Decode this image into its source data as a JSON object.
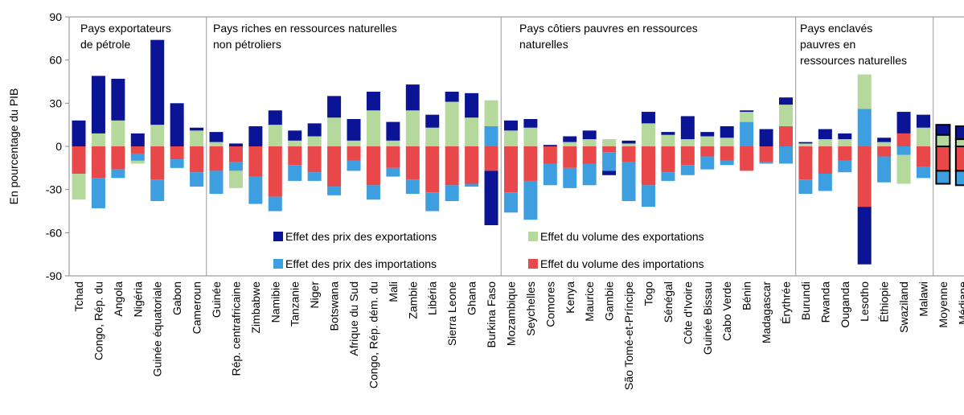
{
  "chart_data": {
    "type": "bar",
    "stacked": true,
    "y_label": "En pourcentage du PIB",
    "ylim": [
      -90,
      90
    ],
    "yticks": [
      90,
      60,
      30,
      0,
      -30,
      -60,
      -90
    ],
    "groups": [
      [
        "Pays exportateurs",
        "de pétrole"
      ],
      [
        "Pays riches en ressources naturelles",
        " non pétroliers"
      ],
      [
        "Pays côtiers pauvres en ressources",
        "naturelles"
      ],
      [
        "Pays enclavés",
        "pauvres en",
        "ressources naturelles"
      ]
    ],
    "categories": [
      "Tchad",
      "Congo, Rép. du",
      "Angola",
      "Nigéria",
      "Guinée équatoriale",
      "Gabon",
      "Cameroun",
      "Guinée",
      "Rép. centrafricaine",
      "Zimbabwe",
      "Namibie",
      "Tanzanie",
      "Niger",
      "Botswana",
      "Afrique du Sud",
      "Congo, Rép. dém. du",
      "Mali",
      "Zambie",
      "Libéria",
      "Sierra Leone",
      "Ghana",
      "Burkina Faso",
      "Mozambique",
      "Seychelles",
      "Comores",
      "Kenya",
      "Maurice",
      "Gambie",
      "São Tomé-et-Príncipe",
      "Togo",
      "Sénégal",
      "Côte d'Ivoire",
      "Guinée Bissau",
      "Cabo Verde",
      "Bénin",
      "Madagascar",
      "Érythrée",
      "Burundi",
      "Rwanda",
      "Ouganda",
      "Lesotho",
      "Éthiopie",
      "Swaziland",
      "Malawi",
      "Moyenne",
      "Médiane"
    ],
    "series": [
      {
        "name": "Effet du volume des importations",
        "color": "#e8484a",
        "values": [
          -19,
          -22,
          -16,
          -5,
          -23,
          -9,
          -18,
          -17,
          -11,
          -21,
          -35,
          -13,
          -18,
          -28,
          -10,
          -27,
          -15,
          -23,
          -32,
          -27,
          -26,
          -17,
          -32,
          -24,
          -12,
          -15,
          -12,
          -4,
          -11,
          -27,
          -18,
          -13,
          -7,
          -10,
          -17,
          -11,
          14,
          -23,
          -19,
          -10,
          -42,
          -7,
          9,
          -14,
          -17,
          -17
        ]
      },
      {
        "name": "Effet des prix des importations",
        "color": "#3d9ee0",
        "values": [
          0,
          -21,
          -6,
          -5,
          -15,
          -6,
          -10,
          -16,
          -6,
          -19,
          -10,
          -11,
          -6,
          -6,
          -7,
          -10,
          -6,
          -10,
          -13,
          -11,
          -2,
          14,
          -14,
          -27,
          -15,
          -14,
          -15,
          -13,
          -27,
          -15,
          -6,
          -7,
          -9,
          -3,
          17,
          -1,
          -12,
          -10,
          -12,
          -8,
          26,
          -18,
          -6,
          -8,
          -9,
          -10
        ]
      },
      {
        "name": "Effet du volume des exportations",
        "color": "#b5d99c",
        "values": [
          -18,
          9,
          18,
          -2,
          15,
          0,
          11,
          3,
          -12,
          0,
          15,
          4,
          7,
          20,
          4,
          25,
          4,
          25,
          13,
          31,
          20,
          18,
          11,
          13,
          0,
          3,
          5,
          5,
          2,
          16,
          8,
          5,
          7,
          6,
          7,
          0,
          15,
          2,
          5,
          5,
          24,
          3,
          -20,
          13,
          8,
          5
        ]
      },
      {
        "name": "Effet des prix des exportations",
        "color": "#0a1495",
        "values": [
          18,
          40,
          29,
          9,
          59,
          30,
          2,
          7,
          2,
          14,
          10,
          7,
          9,
          15,
          15,
          13,
          13,
          18,
          9,
          7,
          17,
          -44,
          7,
          6,
          1,
          4,
          6,
          -3,
          2,
          8,
          2,
          16,
          3,
          8,
          1,
          12,
          5,
          1,
          7,
          4,
          -40,
          3,
          15,
          9,
          7,
          9
        ]
      }
    ]
  }
}
